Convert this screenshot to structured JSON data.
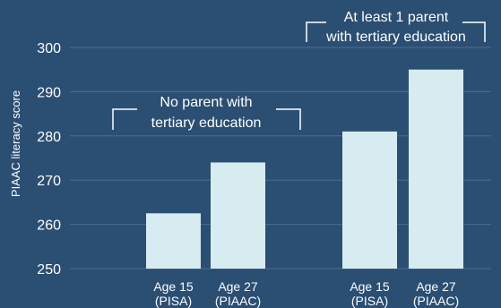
{
  "chart_data": {
    "type": "bar",
    "ylabel": "PIAAC literacy score",
    "ylim": [
      250,
      300
    ],
    "yticks": [
      "250",
      "260",
      "270",
      "280",
      "290",
      "300"
    ],
    "grid": true,
    "groups": [
      {
        "annotation": [
          "No parent with",
          "tertiary education"
        ],
        "bars": [
          {
            "label": [
              "Age 15",
              "(PISA)"
            ],
            "value": 262.5
          },
          {
            "label": [
              "Age 27",
              "(PIAAC)"
            ],
            "value": 274
          }
        ]
      },
      {
        "annotation": [
          "At least 1 parent",
          "with tertiary education"
        ],
        "bars": [
          {
            "label": [
              "Age 15",
              "(PISA)"
            ],
            "value": 281
          },
          {
            "label": [
              "Age 27",
              "(PIAAC)"
            ],
            "value": 295
          }
        ]
      }
    ],
    "colors": {
      "background": "#2b4e73",
      "bar": "#d6ecf1",
      "grid": "#4c6d90",
      "text": "#ffffff",
      "bracket": "#ffffff"
    }
  }
}
